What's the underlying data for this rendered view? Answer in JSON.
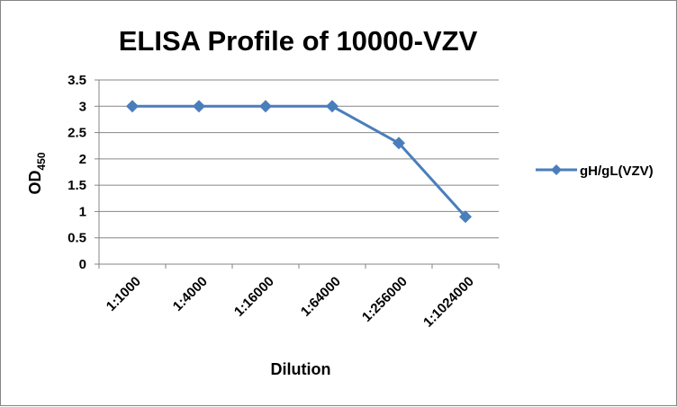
{
  "chart_data": {
    "type": "line",
    "title": "ELISA Profile of 10000-VZV",
    "xlabel": "Dilution",
    "ylabel": {
      "main": "OD",
      "subscript": "450"
    },
    "categories": [
      "1:1000",
      "1:4000",
      "1:16000",
      "1:64000",
      "1:256000",
      "1:1024000"
    ],
    "series": [
      {
        "name": "gH/gL(VZV)",
        "values": [
          3.0,
          3.0,
          3.0,
          3.0,
          2.3,
          0.9
        ],
        "color": "#4a7ebb",
        "marker": "diamond"
      }
    ],
    "ylim": [
      0,
      3.5
    ],
    "yticks": [
      "0",
      "0.5",
      "1",
      "1.5",
      "2",
      "2.5",
      "3",
      "3.5"
    ],
    "grid": true,
    "legend_position": "right"
  }
}
